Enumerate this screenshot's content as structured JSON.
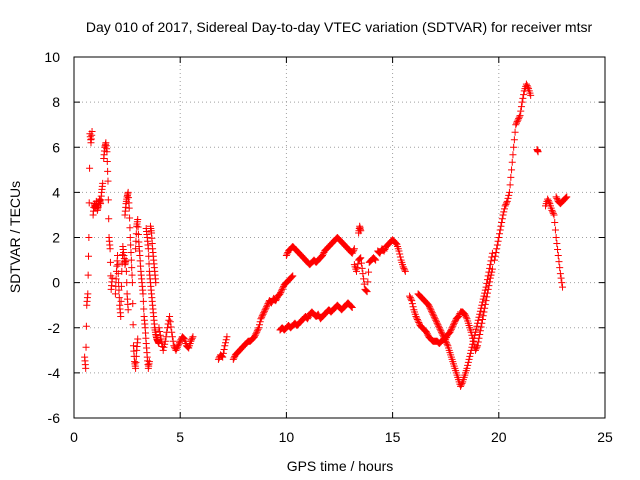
{
  "chart_data": {
    "type": "scatter",
    "title": "Day 010 of 2017, Sidereal Day-to-day VTEC variation (SDTVAR) for receiver mtsr",
    "xlabel": "GPS time / hours",
    "ylabel": "SDTVAR / TECUs",
    "xlim": [
      0,
      25
    ],
    "ylim": [
      -6,
      10
    ],
    "xticks": [
      0,
      5,
      10,
      15,
      20,
      25
    ],
    "yticks": [
      -6,
      -4,
      -2,
      0,
      2,
      4,
      6,
      8,
      10
    ],
    "grid": true,
    "marker": "+",
    "color": "#ff0000",
    "segments": [
      [
        [
          0.5,
          -3.3
        ],
        [
          0.55,
          -3.8
        ],
        [
          0.6,
          -1.0
        ],
        [
          0.65,
          -0.5
        ],
        [
          0.7,
          2.0
        ],
        [
          0.75,
          6.6
        ],
        [
          0.8,
          6.2
        ],
        [
          0.85,
          6.7
        ]
      ],
      [
        [
          0.9,
          3.0
        ],
        [
          0.95,
          3.5
        ],
        [
          1.0,
          3.3
        ],
        [
          1.05,
          3.6
        ],
        [
          1.1,
          3.2
        ],
        [
          1.15,
          3.4
        ],
        [
          1.2,
          3.7
        ],
        [
          1.25,
          3.5
        ],
        [
          1.3,
          4.0
        ],
        [
          1.35,
          4.4
        ]
      ],
      [
        [
          1.4,
          5.5
        ],
        [
          1.45,
          6.0
        ],
        [
          1.5,
          6.2
        ],
        [
          1.55,
          5.8
        ],
        [
          1.6,
          4.5
        ],
        [
          1.65,
          2.0
        ],
        [
          1.7,
          1.5
        ],
        [
          1.75,
          -0.3
        ],
        [
          1.8,
          0.2
        ]
      ],
      [
        [
          1.95,
          -0.5
        ],
        [
          2.0,
          0.5
        ],
        [
          2.05,
          1.2
        ],
        [
          2.1,
          0.0
        ],
        [
          2.15,
          -1.0
        ],
        [
          2.2,
          -1.5
        ],
        [
          2.25,
          0.5
        ],
        [
          2.3,
          1.6
        ],
        [
          2.35,
          1.2
        ],
        [
          2.4,
          0.8
        ],
        [
          2.45,
          1.0
        ],
        [
          2.5,
          -0.5
        ],
        [
          2.55,
          -1.2
        ]
      ],
      [
        [
          2.4,
          3.0
        ],
        [
          2.45,
          3.5
        ],
        [
          2.5,
          3.8
        ],
        [
          2.55,
          4.0
        ],
        [
          2.6,
          3.3
        ],
        [
          2.65,
          2.0
        ],
        [
          2.7,
          1.0
        ],
        [
          2.75,
          0.0
        ],
        [
          2.8,
          -2.8
        ],
        [
          2.85,
          -3.5
        ],
        [
          2.9,
          -3.8
        ],
        [
          2.95,
          -3.0
        ],
        [
          3.0,
          -2.5
        ]
      ],
      [
        [
          2.9,
          1.5
        ],
        [
          2.95,
          2.5
        ],
        [
          3.0,
          2.8
        ],
        [
          3.05,
          1.8
        ],
        [
          3.1,
          1.2
        ],
        [
          3.15,
          0.5
        ],
        [
          3.2,
          0.0
        ],
        [
          3.25,
          -0.5
        ],
        [
          3.3,
          -1.5
        ],
        [
          3.35,
          -2.0
        ],
        [
          3.4,
          -2.7
        ],
        [
          3.45,
          -3.3
        ],
        [
          3.5,
          -3.8
        ],
        [
          3.55,
          -3.5
        ]
      ],
      [
        [
          3.4,
          2.4
        ],
        [
          3.45,
          2.0
        ],
        [
          3.5,
          1.5
        ],
        [
          3.55,
          0.5
        ],
        [
          3.6,
          0.0
        ],
        [
          3.65,
          -0.5
        ],
        [
          3.7,
          -1.0
        ],
        [
          3.75,
          -1.5
        ],
        [
          3.8,
          -2.0
        ],
        [
          3.85,
          -2.3
        ],
        [
          3.9,
          -2.5
        ],
        [
          3.95,
          -2.6
        ],
        [
          4.0,
          -2.7
        ]
      ],
      [
        [
          3.6,
          2.5
        ],
        [
          3.65,
          2.2
        ],
        [
          3.7,
          1.5
        ],
        [
          3.75,
          1.0
        ],
        [
          3.8,
          0.5
        ],
        [
          3.85,
          0.0
        ]
      ],
      [
        [
          4.0,
          -2.0
        ],
        [
          4.1,
          -2.5
        ],
        [
          4.2,
          -3.0
        ],
        [
          4.3,
          -2.6
        ],
        [
          4.4,
          -2.0
        ],
        [
          4.5,
          -1.5
        ],
        [
          4.6,
          -2.2
        ],
        [
          4.7,
          -2.8
        ],
        [
          4.8,
          -3.0
        ],
        [
          4.9,
          -2.8
        ],
        [
          5.0,
          -2.6
        ],
        [
          5.1,
          -2.4
        ],
        [
          5.2,
          -2.5
        ],
        [
          5.3,
          -2.8
        ],
        [
          5.4,
          -2.9
        ],
        [
          5.5,
          -2.6
        ],
        [
          5.6,
          -2.4
        ]
      ],
      [
        [
          6.8,
          -3.4
        ],
        [
          6.9,
          -3.2
        ],
        [
          7.0,
          -3.3
        ],
        [
          7.1,
          -2.8
        ],
        [
          7.2,
          -2.4
        ]
      ],
      [
        [
          7.5,
          -3.4
        ],
        [
          7.6,
          -3.2
        ],
        [
          7.7,
          -3.1
        ],
        [
          7.8,
          -3.0
        ],
        [
          7.9,
          -2.9
        ],
        [
          8.0,
          -2.8
        ],
        [
          8.1,
          -2.7
        ],
        [
          8.2,
          -2.6
        ],
        [
          8.3,
          -2.6
        ],
        [
          8.4,
          -2.5
        ],
        [
          8.5,
          -2.4
        ],
        [
          8.6,
          -2.2
        ],
        [
          8.7,
          -2.0
        ],
        [
          8.8,
          -1.6
        ],
        [
          8.9,
          -1.4
        ],
        [
          9.0,
          -1.2
        ],
        [
          9.1,
          -1.0
        ],
        [
          9.2,
          -0.8
        ],
        [
          9.3,
          -0.9
        ],
        [
          9.4,
          -0.7
        ],
        [
          9.5,
          -0.8
        ],
        [
          9.6,
          -0.6
        ],
        [
          9.7,
          -0.5
        ],
        [
          9.8,
          -0.3
        ],
        [
          9.9,
          -0.1
        ],
        [
          10.0,
          0.0
        ],
        [
          10.1,
          0.1
        ],
        [
          10.2,
          0.2
        ],
        [
          10.3,
          0.3
        ]
      ],
      [
        [
          9.7,
          -2.1
        ],
        [
          9.8,
          -2.0
        ],
        [
          9.9,
          -2.1
        ],
        [
          10.0,
          -2.0
        ],
        [
          10.1,
          -1.9
        ],
        [
          10.2,
          -2.0
        ],
        [
          10.3,
          -1.9
        ],
        [
          10.4,
          -1.8
        ],
        [
          10.5,
          -1.9
        ],
        [
          10.6,
          -1.8
        ],
        [
          10.7,
          -1.7
        ],
        [
          10.8,
          -1.6
        ],
        [
          10.9,
          -1.5
        ],
        [
          11.0,
          -1.6
        ],
        [
          11.1,
          -1.4
        ],
        [
          11.2,
          -1.3
        ],
        [
          11.3,
          -1.4
        ],
        [
          11.4,
          -1.5
        ],
        [
          11.5,
          -1.4
        ],
        [
          11.6,
          -1.6
        ],
        [
          11.7,
          -1.5
        ],
        [
          11.8,
          -1.4
        ],
        [
          11.9,
          -1.3
        ],
        [
          12.0,
          -1.2
        ],
        [
          12.1,
          -1.3
        ],
        [
          12.2,
          -1.2
        ],
        [
          12.3,
          -1.1
        ],
        [
          12.4,
          -1.0
        ],
        [
          12.5,
          -1.1
        ],
        [
          12.6,
          -1.2
        ],
        [
          12.7,
          -1.1
        ],
        [
          12.8,
          -1.0
        ],
        [
          12.9,
          -0.9
        ],
        [
          13.0,
          -1.0
        ],
        [
          13.1,
          -1.1
        ]
      ],
      [
        [
          10.0,
          1.2
        ],
        [
          10.1,
          1.4
        ],
        [
          10.2,
          1.5
        ],
        [
          10.3,
          1.6
        ],
        [
          10.4,
          1.5
        ],
        [
          10.5,
          1.4
        ],
        [
          10.6,
          1.3
        ],
        [
          10.7,
          1.2
        ],
        [
          10.8,
          1.1
        ],
        [
          10.9,
          1.0
        ],
        [
          11.0,
          0.9
        ],
        [
          11.1,
          0.8
        ],
        [
          11.2,
          0.9
        ],
        [
          11.3,
          1.0
        ],
        [
          11.4,
          0.9
        ],
        [
          11.5,
          1.0
        ],
        [
          11.6,
          1.1
        ],
        [
          11.7,
          1.2
        ],
        [
          11.8,
          1.4
        ],
        [
          11.9,
          1.5
        ],
        [
          12.0,
          1.6
        ],
        [
          12.1,
          1.7
        ],
        [
          12.2,
          1.8
        ],
        [
          12.3,
          1.9
        ],
        [
          12.4,
          2.0
        ],
        [
          12.5,
          1.9
        ],
        [
          12.6,
          1.8
        ],
        [
          12.7,
          1.7
        ],
        [
          12.8,
          1.6
        ],
        [
          12.9,
          1.5
        ],
        [
          13.0,
          1.4
        ],
        [
          13.1,
          1.3
        ],
        [
          13.2,
          1.5
        ]
      ],
      [
        [
          13.2,
          0.8
        ],
        [
          13.3,
          0.5
        ],
        [
          13.4,
          1.0
        ],
        [
          13.5,
          1.1
        ],
        [
          13.6,
          0.4
        ],
        [
          13.7,
          -0.3
        ],
        [
          13.8,
          -0.4
        ],
        [
          13.9,
          0.9
        ],
        [
          14.0,
          1.0
        ],
        [
          14.1,
          1.1
        ],
        [
          14.2,
          1.0
        ]
      ],
      [
        [
          13.4,
          2.2
        ],
        [
          13.45,
          2.5
        ],
        [
          13.5,
          2.3
        ]
      ],
      [
        [
          14.3,
          1.4
        ],
        [
          14.4,
          1.3
        ],
        [
          14.5,
          1.5
        ],
        [
          14.6,
          1.4
        ],
        [
          14.7,
          1.6
        ],
        [
          14.8,
          1.7
        ],
        [
          14.9,
          1.8
        ],
        [
          15.0,
          1.9
        ],
        [
          15.1,
          1.8
        ],
        [
          15.2,
          1.7
        ],
        [
          15.3,
          1.4
        ],
        [
          15.4,
          1.0
        ],
        [
          15.5,
          0.7
        ],
        [
          15.6,
          0.5
        ]
      ],
      [
        [
          16.2,
          -0.5
        ],
        [
          16.3,
          -0.6
        ],
        [
          16.4,
          -0.7
        ],
        [
          16.5,
          -0.8
        ],
        [
          16.6,
          -0.9
        ],
        [
          16.7,
          -1.0
        ],
        [
          16.8,
          -1.2
        ],
        [
          16.9,
          -1.4
        ],
        [
          17.0,
          -1.6
        ],
        [
          17.1,
          -1.8
        ],
        [
          17.2,
          -2.0
        ],
        [
          17.3,
          -2.2
        ],
        [
          17.4,
          -2.4
        ],
        [
          17.5,
          -2.6
        ],
        [
          17.6,
          -2.8
        ],
        [
          17.7,
          -3.1
        ],
        [
          17.8,
          -3.4
        ],
        [
          17.9,
          -3.7
        ],
        [
          18.0,
          -4.0
        ],
        [
          18.1,
          -4.3
        ],
        [
          18.2,
          -4.6
        ],
        [
          18.3,
          -4.4
        ],
        [
          18.4,
          -4.1
        ],
        [
          18.5,
          -3.8
        ],
        [
          18.6,
          -3.4
        ],
        [
          18.7,
          -3.0
        ],
        [
          18.8,
          -2.6
        ],
        [
          18.9,
          -2.2
        ],
        [
          19.0,
          -1.8
        ],
        [
          19.1,
          -1.4
        ],
        [
          19.2,
          -1.0
        ],
        [
          19.3,
          -0.6
        ],
        [
          19.4,
          -0.2
        ],
        [
          19.5,
          0.3
        ],
        [
          19.6,
          0.8
        ],
        [
          19.7,
          1.3
        ]
      ],
      [
        [
          15.8,
          -0.6
        ],
        [
          15.9,
          -0.8
        ],
        [
          16.0,
          -1.2
        ],
        [
          16.1,
          -1.5
        ],
        [
          16.2,
          -1.7
        ],
        [
          16.3,
          -1.9
        ],
        [
          16.4,
          -2.0
        ],
        [
          16.5,
          -2.1
        ],
        [
          16.6,
          -2.2
        ],
        [
          16.7,
          -2.4
        ],
        [
          16.8,
          -2.5
        ],
        [
          16.9,
          -2.6
        ],
        [
          17.0,
          -2.6
        ],
        [
          17.1,
          -2.6
        ],
        [
          17.2,
          -2.7
        ],
        [
          17.3,
          -2.6
        ],
        [
          17.4,
          -2.5
        ],
        [
          17.5,
          -2.5
        ],
        [
          17.6,
          -2.3
        ],
        [
          17.7,
          -2.2
        ],
        [
          17.8,
          -2.0
        ],
        [
          17.9,
          -1.8
        ],
        [
          18.0,
          -1.6
        ],
        [
          18.1,
          -1.5
        ],
        [
          18.2,
          -1.3
        ],
        [
          18.3,
          -1.3
        ],
        [
          18.4,
          -1.4
        ],
        [
          18.5,
          -1.6
        ],
        [
          18.6,
          -1.9
        ],
        [
          18.7,
          -2.2
        ],
        [
          18.8,
          -2.6
        ],
        [
          18.9,
          -3.0
        ],
        [
          19.0,
          -2.8
        ],
        [
          19.1,
          -2.3
        ],
        [
          19.2,
          -1.8
        ],
        [
          19.3,
          -1.3
        ],
        [
          19.4,
          -0.8
        ],
        [
          19.5,
          -0.3
        ],
        [
          19.6,
          0.2
        ],
        [
          19.7,
          0.6
        ]
      ],
      [
        [
          19.8,
          1.0
        ],
        [
          19.9,
          1.5
        ],
        [
          20.0,
          2.0
        ],
        [
          20.1,
          2.5
        ],
        [
          20.2,
          3.0
        ],
        [
          20.3,
          3.4
        ],
        [
          20.4,
          3.6
        ],
        [
          20.5,
          4.0
        ],
        [
          20.6,
          5.0
        ],
        [
          20.7,
          6.0
        ],
        [
          20.8,
          7.0
        ],
        [
          20.9,
          7.2
        ],
        [
          21.0,
          7.4
        ],
        [
          21.1,
          8.0
        ],
        [
          21.2,
          8.5
        ],
        [
          21.3,
          8.8
        ],
        [
          21.4,
          8.6
        ],
        [
          21.5,
          8.3
        ]
      ],
      [
        [
          21.8,
          5.9
        ],
        [
          21.85,
          5.8
        ]
      ],
      [
        [
          22.2,
          3.4
        ],
        [
          22.3,
          3.7
        ],
        [
          22.4,
          3.5
        ],
        [
          22.5,
          3.2
        ],
        [
          22.6,
          3.0
        ],
        [
          22.7,
          2.0
        ],
        [
          22.8,
          1.2
        ],
        [
          22.9,
          0.4
        ],
        [
          23.0,
          -0.2
        ]
      ],
      [
        [
          22.7,
          3.8
        ],
        [
          22.8,
          3.6
        ],
        [
          22.9,
          3.5
        ],
        [
          23.0,
          3.6
        ],
        [
          23.1,
          3.7
        ],
        [
          23.2,
          3.8
        ]
      ]
    ]
  }
}
